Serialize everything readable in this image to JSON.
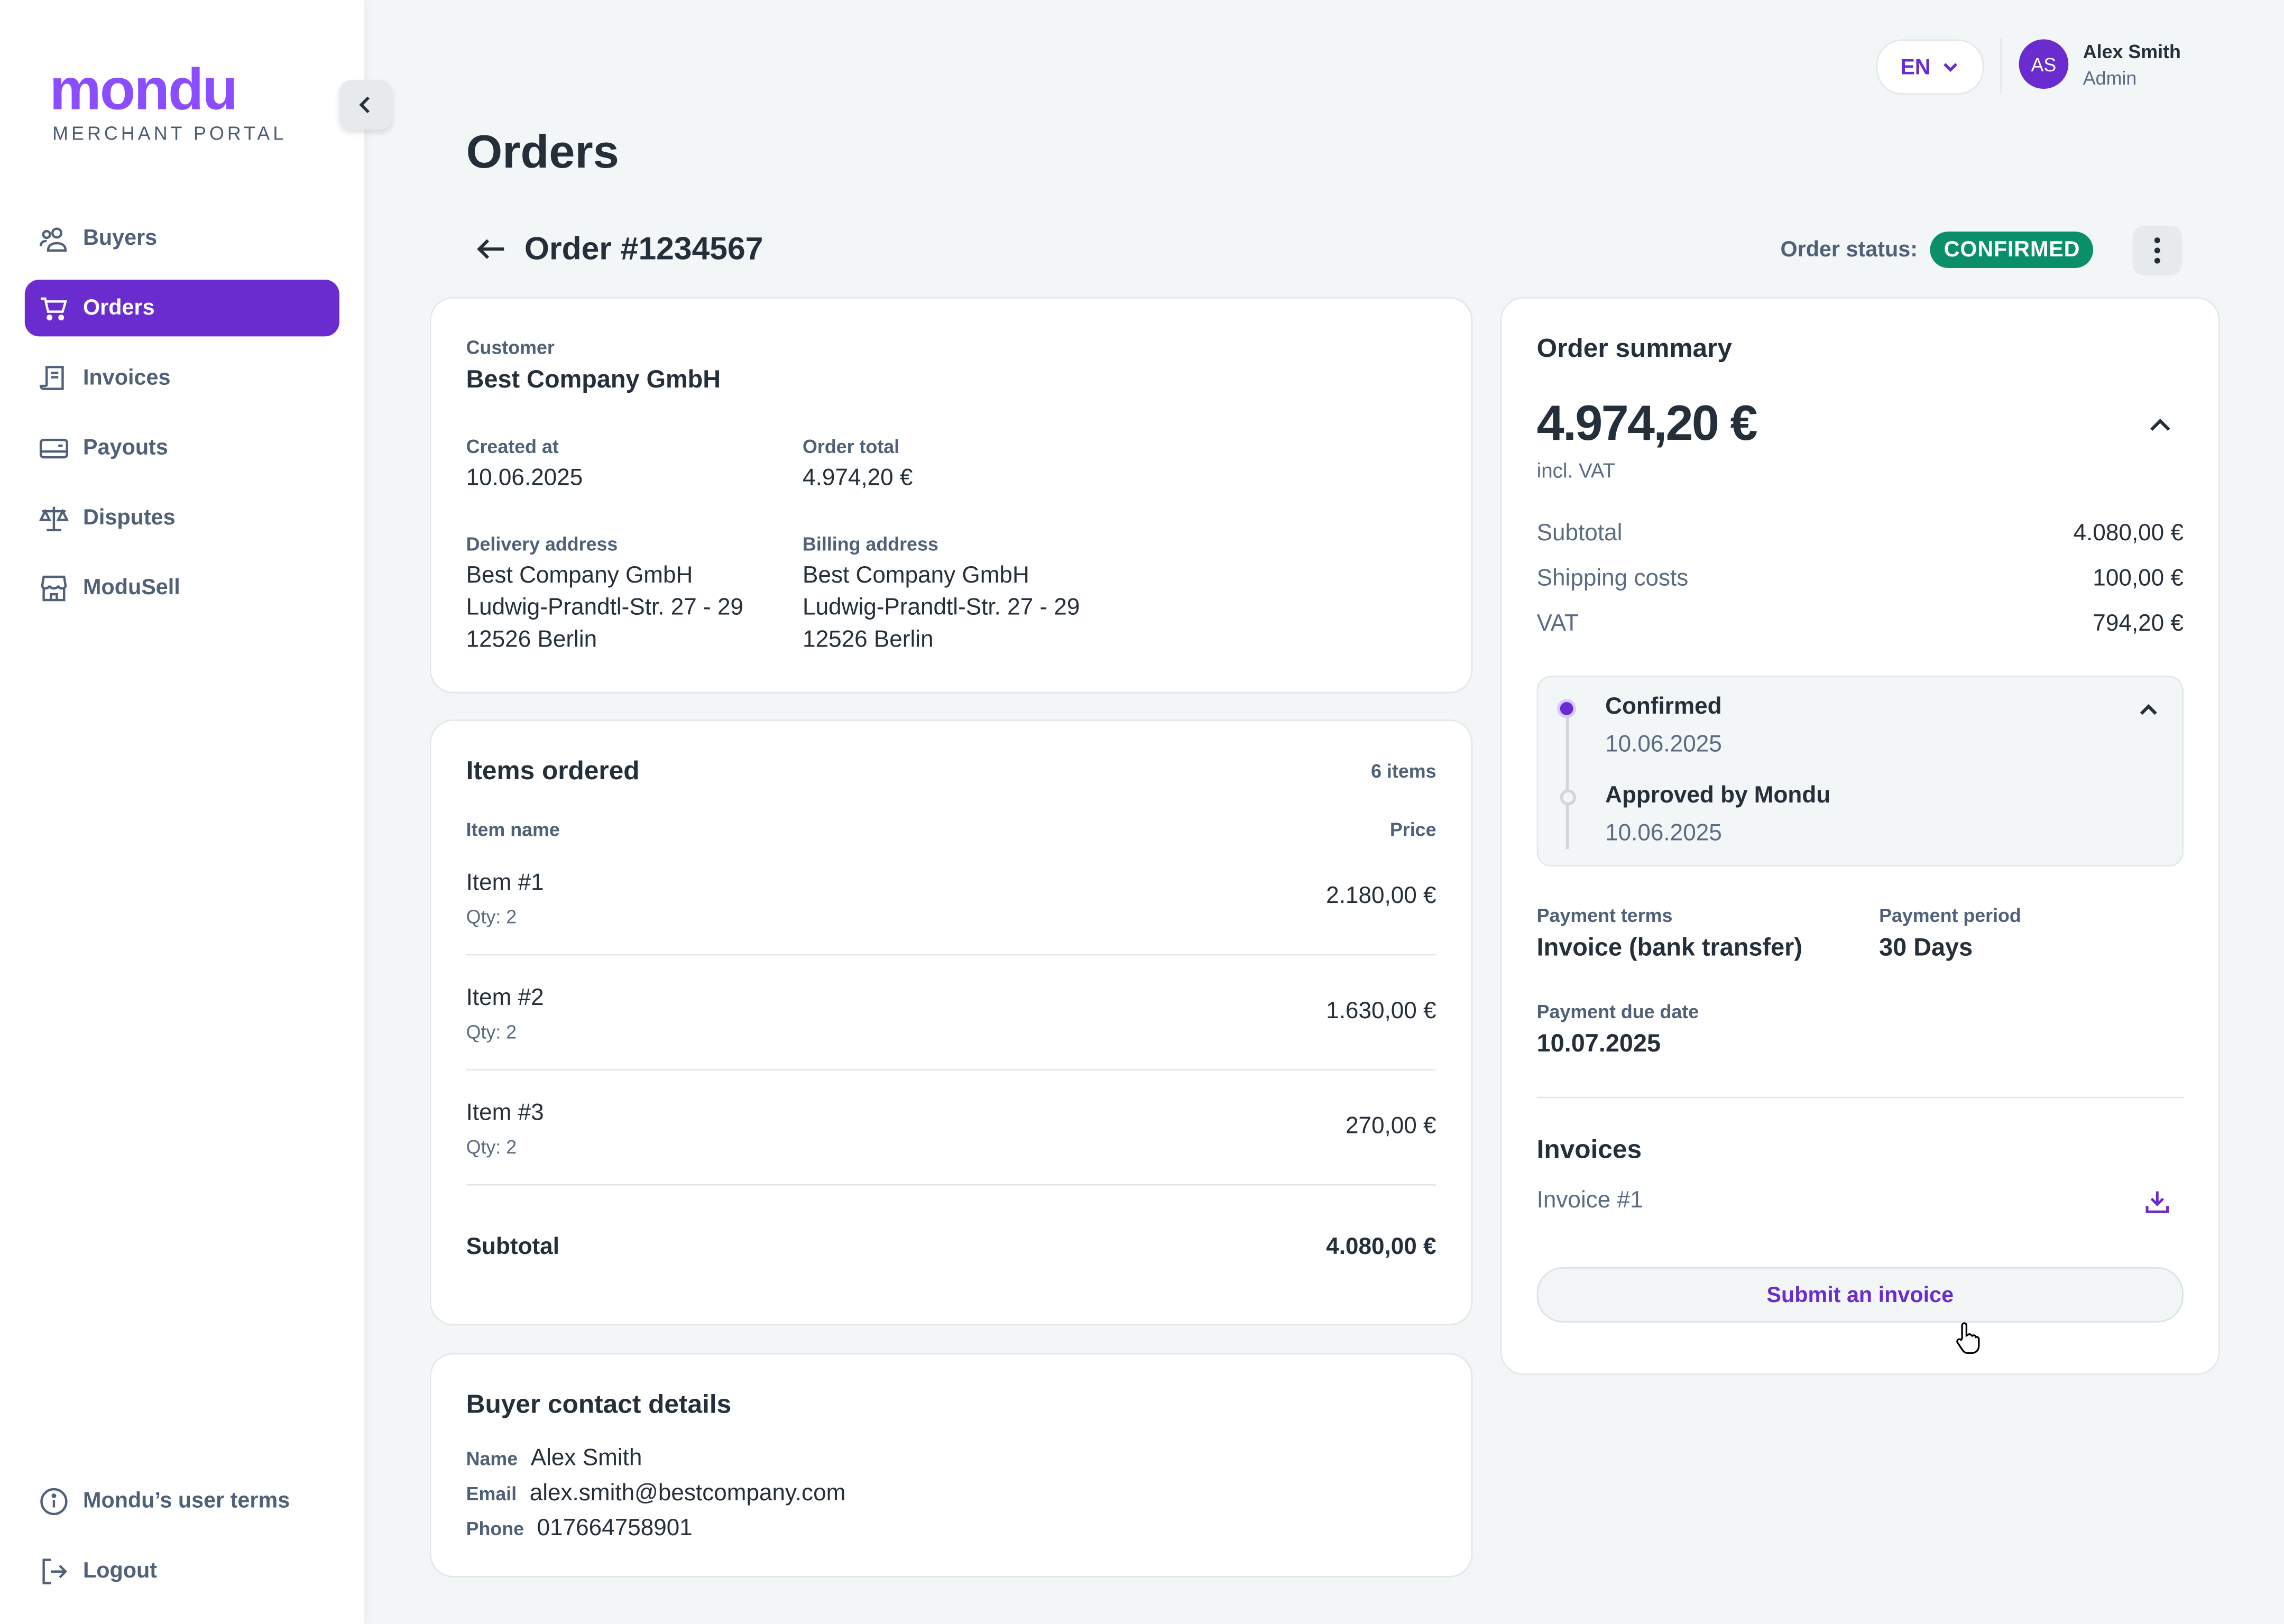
{
  "brand": {
    "logo": "mondu",
    "subtitle": "MERCHANT PORTAL",
    "accent": "#6a2ccf"
  },
  "sidebar": {
    "items": [
      {
        "label": "Buyers",
        "icon": "users-icon"
      },
      {
        "label": "Orders",
        "icon": "cart-icon",
        "active": true
      },
      {
        "label": "Invoices",
        "icon": "receipt-icon"
      },
      {
        "label": "Payouts",
        "icon": "wallet-icon"
      },
      {
        "label": "Disputes",
        "icon": "scale-icon"
      },
      {
        "label": "ModuSell",
        "icon": "store-icon"
      }
    ],
    "footer": [
      {
        "label": "Mondu’s user terms",
        "icon": "info-icon"
      },
      {
        "label": "Logout",
        "icon": "logout-icon"
      }
    ]
  },
  "header": {
    "language": "EN",
    "user": {
      "initials": "AS",
      "name": "Alex Smith",
      "role": "Admin"
    }
  },
  "page": {
    "title": "Orders",
    "order_title": "Order #1234567",
    "status_label": "Order status:",
    "status": "CONFIRMED"
  },
  "details": {
    "customer_label": "Customer",
    "customer": "Best Company GmbH",
    "created_label": "Created at",
    "created": "10.06.2025",
    "total_label": "Order total",
    "total": "4.974,20 €",
    "delivery_label": "Delivery address",
    "delivery": [
      "Best Company GmbH",
      "Ludwig-Prandtl-Str. 27 - 29",
      "12526 Berlin"
    ],
    "billing_label": "Billing address",
    "billing": [
      "Best Company GmbH",
      "Ludwig-Prandtl-Str. 27 - 29",
      "12526 Berlin"
    ]
  },
  "items": {
    "title": "Items ordered",
    "count": "6 items",
    "col_name": "Item name",
    "col_price": "Price",
    "rows": [
      {
        "name": "Item #1",
        "qty": "Qty: 2",
        "price": "2.180,00 €"
      },
      {
        "name": "Item #2",
        "qty": "Qty: 2",
        "price": "1.630,00 €"
      },
      {
        "name": "Item #3",
        "qty": "Qty: 2",
        "price": "270,00 €"
      }
    ],
    "subtotal_label": "Subtotal",
    "subtotal": "4.080,00 €"
  },
  "contact": {
    "title": "Buyer contact details",
    "name_label": "Name",
    "name": "Alex Smith",
    "email_label": "Email",
    "email": "alex.smith@bestcompany.com",
    "phone_label": "Phone",
    "phone": "017664758901"
  },
  "summary": {
    "title": "Order summary",
    "amount": "4.974,20 €",
    "vat_note": "incl. VAT",
    "lines": [
      {
        "label": "Subtotal",
        "value": "4.080,00 €"
      },
      {
        "label": "Shipping costs",
        "value": "100,00 €"
      },
      {
        "label": "VAT",
        "value": "794,20 €"
      }
    ],
    "timeline": [
      {
        "label": "Confirmed",
        "date": "10.06.2025"
      },
      {
        "label": "Approved by Mondu",
        "date": "10.06.2025"
      }
    ],
    "terms_label": "Payment terms",
    "terms": "Invoice (bank transfer)",
    "period_label": "Payment period",
    "period": "30 Days",
    "due_label": "Payment due date",
    "due": "10.07.2025",
    "invoices_title": "Invoices",
    "invoice": "Invoice #1",
    "submit": "Submit an invoice"
  }
}
